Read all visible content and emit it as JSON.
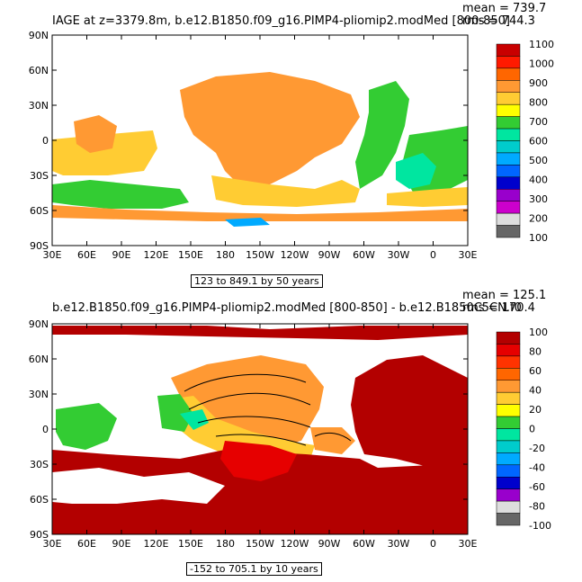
{
  "panels": [
    {
      "title": "IAGE at z=3379.8m, b.e12.B1850.f09_g16.PIMP4-pliomip2.modMed [800-850]",
      "stat_mean": "mean = 739.7",
      "stat_rms": "rms = 744.3",
      "range_label": "123 to 849.1 by 50 years",
      "colorbar_labels": [
        "1100",
        "1000",
        "900",
        "800",
        "700",
        "600",
        "500",
        "400",
        "300",
        "200",
        "100"
      ],
      "colorbar_colors": [
        "#c80000",
        "#ff1a00",
        "#ff6600",
        "#ff9933",
        "#ffcc33",
        "#ffff00",
        "#33cc33",
        "#00e6a0",
        "#00cccc",
        "#00aaff",
        "#0066ff",
        "#0000cc",
        "#9900cc",
        "#cc00cc",
        "#dddddd",
        "#666666"
      ]
    },
    {
      "title": "b.e12.B1850.f09_g16.PIMP4-pliomip2.modMed [800-850] - b.e12.B1850C5CN.f0",
      "stat_mean": "mean = 125.1",
      "stat_rms": "rms = 170.4",
      "range_label": "-152 to 705.1 by 10 years",
      "colorbar_labels": [
        "100",
        "80",
        "60",
        "40",
        "20",
        "0",
        "-20",
        "-40",
        "-60",
        "-80",
        "-100"
      ],
      "colorbar_colors": [
        "#b30000",
        "#e60000",
        "#ff3300",
        "#ff6600",
        "#ff9933",
        "#ffcc33",
        "#ffff00",
        "#33cc33",
        "#00e6a0",
        "#00cccc",
        "#00aaff",
        "#0066ff",
        "#0000cc",
        "#9900cc",
        "#dddddd",
        "#666666"
      ]
    }
  ],
  "chart_data": [
    {
      "type": "heatmap",
      "title": "IAGE at z=3379.8m, b.e12.B1850.f09_g16.PIMP4-pliomip2.modMed [800-850]",
      "x_ticks": [
        "30E",
        "60E",
        "90E",
        "120E",
        "150E",
        "180",
        "150W",
        "120W",
        "90W",
        "60W",
        "30W",
        "0",
        "30E"
      ],
      "y_ticks": [
        "90N",
        "60N",
        "30N",
        "0",
        "30S",
        "60S",
        "90S"
      ],
      "colorbar": [
        100,
        200,
        300,
        400,
        500,
        600,
        700,
        800,
        900,
        1000,
        1100
      ],
      "range": "123 to 849.1 by 50 years",
      "mean": 739.7,
      "rms": 744.3
    },
    {
      "type": "heatmap",
      "title": "b.e12.B1850.f09_g16.PIMP4-pliomip2.modMed [800-850] - b.e12.B1850C5CN.f0",
      "x_ticks": [
        "30E",
        "60E",
        "90E",
        "120E",
        "150E",
        "180",
        "150W",
        "120W",
        "90W",
        "60W",
        "30W",
        "0",
        "30E"
      ],
      "y_ticks": [
        "90N",
        "60N",
        "30N",
        "0",
        "30S",
        "60S",
        "90S"
      ],
      "colorbar": [
        -100,
        -80,
        -60,
        -40,
        -20,
        0,
        20,
        40,
        60,
        80,
        100
      ],
      "range": "-152 to 705.1 by 10 years",
      "mean": 125.1,
      "rms": 170.4
    }
  ]
}
